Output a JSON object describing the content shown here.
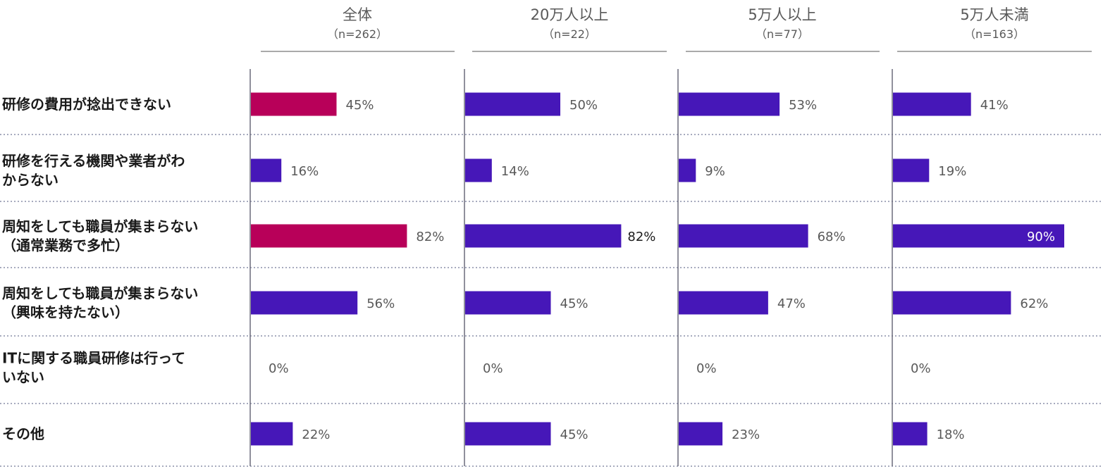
{
  "chart_data": {
    "type": "bar",
    "orientation": "horizontal",
    "unit": "%",
    "xlim": [
      0,
      100
    ],
    "grid": false,
    "categories": [
      "研修の費用が捻出できない",
      "研修を行える機関や業者がわ|からない",
      "周知をしても職員が集まらない|（通常業務で多忙）",
      "周知をしても職員が集まらない|（興味を持たない）",
      "ITに関する職員研修は行って|いない",
      "その他"
    ],
    "panels": [
      {
        "title": "全体",
        "subtitle": "（n=262）",
        "values": [
          45,
          16,
          82,
          56,
          0,
          22
        ],
        "labels": [
          "45%",
          "16%",
          "82%",
          "56%",
          "0%",
          "22%"
        ],
        "highlight": [
          0,
          2
        ]
      },
      {
        "title": "20万人以上",
        "subtitle": "（n=22）",
        "values": [
          50,
          14,
          82,
          45,
          0,
          45
        ],
        "labels": [
          "50%",
          "14%",
          "82%",
          "45%",
          "0%",
          "45%"
        ],
        "highlight": []
      },
      {
        "title": "5万人以上",
        "subtitle": "（n=77）",
        "values": [
          53,
          9,
          68,
          47,
          0,
          23
        ],
        "labels": [
          "53%",
          "9%",
          "68%",
          "47%",
          "0%",
          "23%"
        ],
        "highlight": []
      },
      {
        "title": "5万人未満",
        "subtitle": "（n=163）",
        "values": [
          41,
          19,
          90,
          62,
          0,
          18
        ],
        "labels": [
          "41%",
          "19%",
          "90%",
          "62%",
          "0%",
          "18%"
        ],
        "highlight": []
      }
    ],
    "colors": {
      "bar": "#4617b8",
      "highlight": "#b80059",
      "axis": "#6b6b7b",
      "separator": "#8a8fa8",
      "header_rule": "#777777"
    }
  }
}
